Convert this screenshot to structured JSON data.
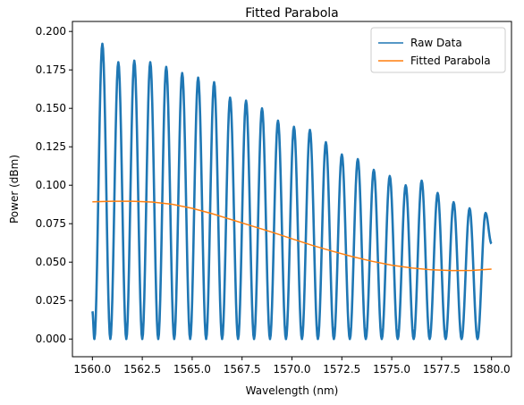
{
  "chart_data": {
    "type": "line",
    "title": "Fitted Parabola",
    "xlabel": "Wavelength (nm)",
    "ylabel": "Power (dBm)",
    "xlim": [
      1559.0,
      1581.0
    ],
    "ylim": [
      -0.0115,
      0.2065
    ],
    "xticks": [
      1560.0,
      1562.5,
      1565.0,
      1567.5,
      1570.0,
      1572.5,
      1575.0,
      1577.5,
      1580.0
    ],
    "xtick_labels": [
      "1560.0",
      "1562.5",
      "1565.0",
      "1567.5",
      "1570.0",
      "1572.5",
      "1575.0",
      "1577.5",
      "1580.0"
    ],
    "yticks": [
      0.0,
      0.025,
      0.05,
      0.075,
      0.1,
      0.125,
      0.15,
      0.175,
      0.2
    ],
    "ytick_labels": [
      "0.000",
      "0.025",
      "0.050",
      "0.075",
      "0.100",
      "0.125",
      "0.150",
      "0.175",
      "0.200"
    ],
    "grid": false,
    "legend_position": "top-right",
    "series": [
      {
        "name": "Raw Data",
        "color": "#1f77b4",
        "kind": "oscillating",
        "x": [
          1560.0,
          1560.1,
          1560.5,
          1560.9,
          1561.3,
          1561.7,
          1562.1,
          1562.5,
          1562.9,
          1563.3,
          1563.7,
          1564.1,
          1564.5,
          1564.9,
          1565.3,
          1565.7,
          1566.1,
          1566.5,
          1566.9,
          1567.3,
          1567.7,
          1568.1,
          1568.5,
          1568.9,
          1569.3,
          1569.7,
          1570.1,
          1570.5,
          1570.9,
          1571.3,
          1571.7,
          1572.1,
          1572.5,
          1572.9,
          1573.3,
          1573.7,
          1574.1,
          1574.5,
          1574.9,
          1575.3,
          1575.7,
          1576.1,
          1576.5,
          1576.9,
          1577.3,
          1577.7,
          1578.1,
          1578.5,
          1578.9,
          1579.3,
          1579.7,
          1580.0
        ],
        "y": [
          0.018,
          0.0,
          0.192,
          0.0,
          0.18,
          0.0,
          0.181,
          0.0,
          0.18,
          0.0,
          0.177,
          0.0,
          0.173,
          0.0,
          0.17,
          0.0,
          0.167,
          0.0,
          0.157,
          0.0,
          0.155,
          0.0,
          0.15,
          0.0,
          0.142,
          0.0,
          0.138,
          0.0,
          0.136,
          0.0,
          0.128,
          0.0,
          0.12,
          0.0,
          0.117,
          0.0,
          0.11,
          0.0,
          0.106,
          0.0,
          0.1,
          0.0,
          0.103,
          0.0,
          0.095,
          0.0,
          0.089,
          0.0,
          0.085,
          0.0,
          0.082,
          0.062
        ]
      },
      {
        "name": "Fitted Parabola",
        "color": "#ff7f0e",
        "kind": "smooth",
        "x": [
          1560.0,
          1561.0,
          1562.0,
          1563.0,
          1564.0,
          1565.0,
          1566.0,
          1567.0,
          1568.0,
          1569.0,
          1570.0,
          1571.0,
          1572.0,
          1573.0,
          1574.0,
          1575.0,
          1576.0,
          1577.0,
          1578.0,
          1579.0,
          1580.0
        ],
        "y": [
          0.0892,
          0.0896,
          0.0896,
          0.0891,
          0.0876,
          0.085,
          0.0815,
          0.0775,
          0.0735,
          0.0695,
          0.0652,
          0.061,
          0.0572,
          0.0537,
          0.0506,
          0.048,
          0.0462,
          0.045,
          0.0445,
          0.0446,
          0.0455
        ]
      }
    ]
  }
}
